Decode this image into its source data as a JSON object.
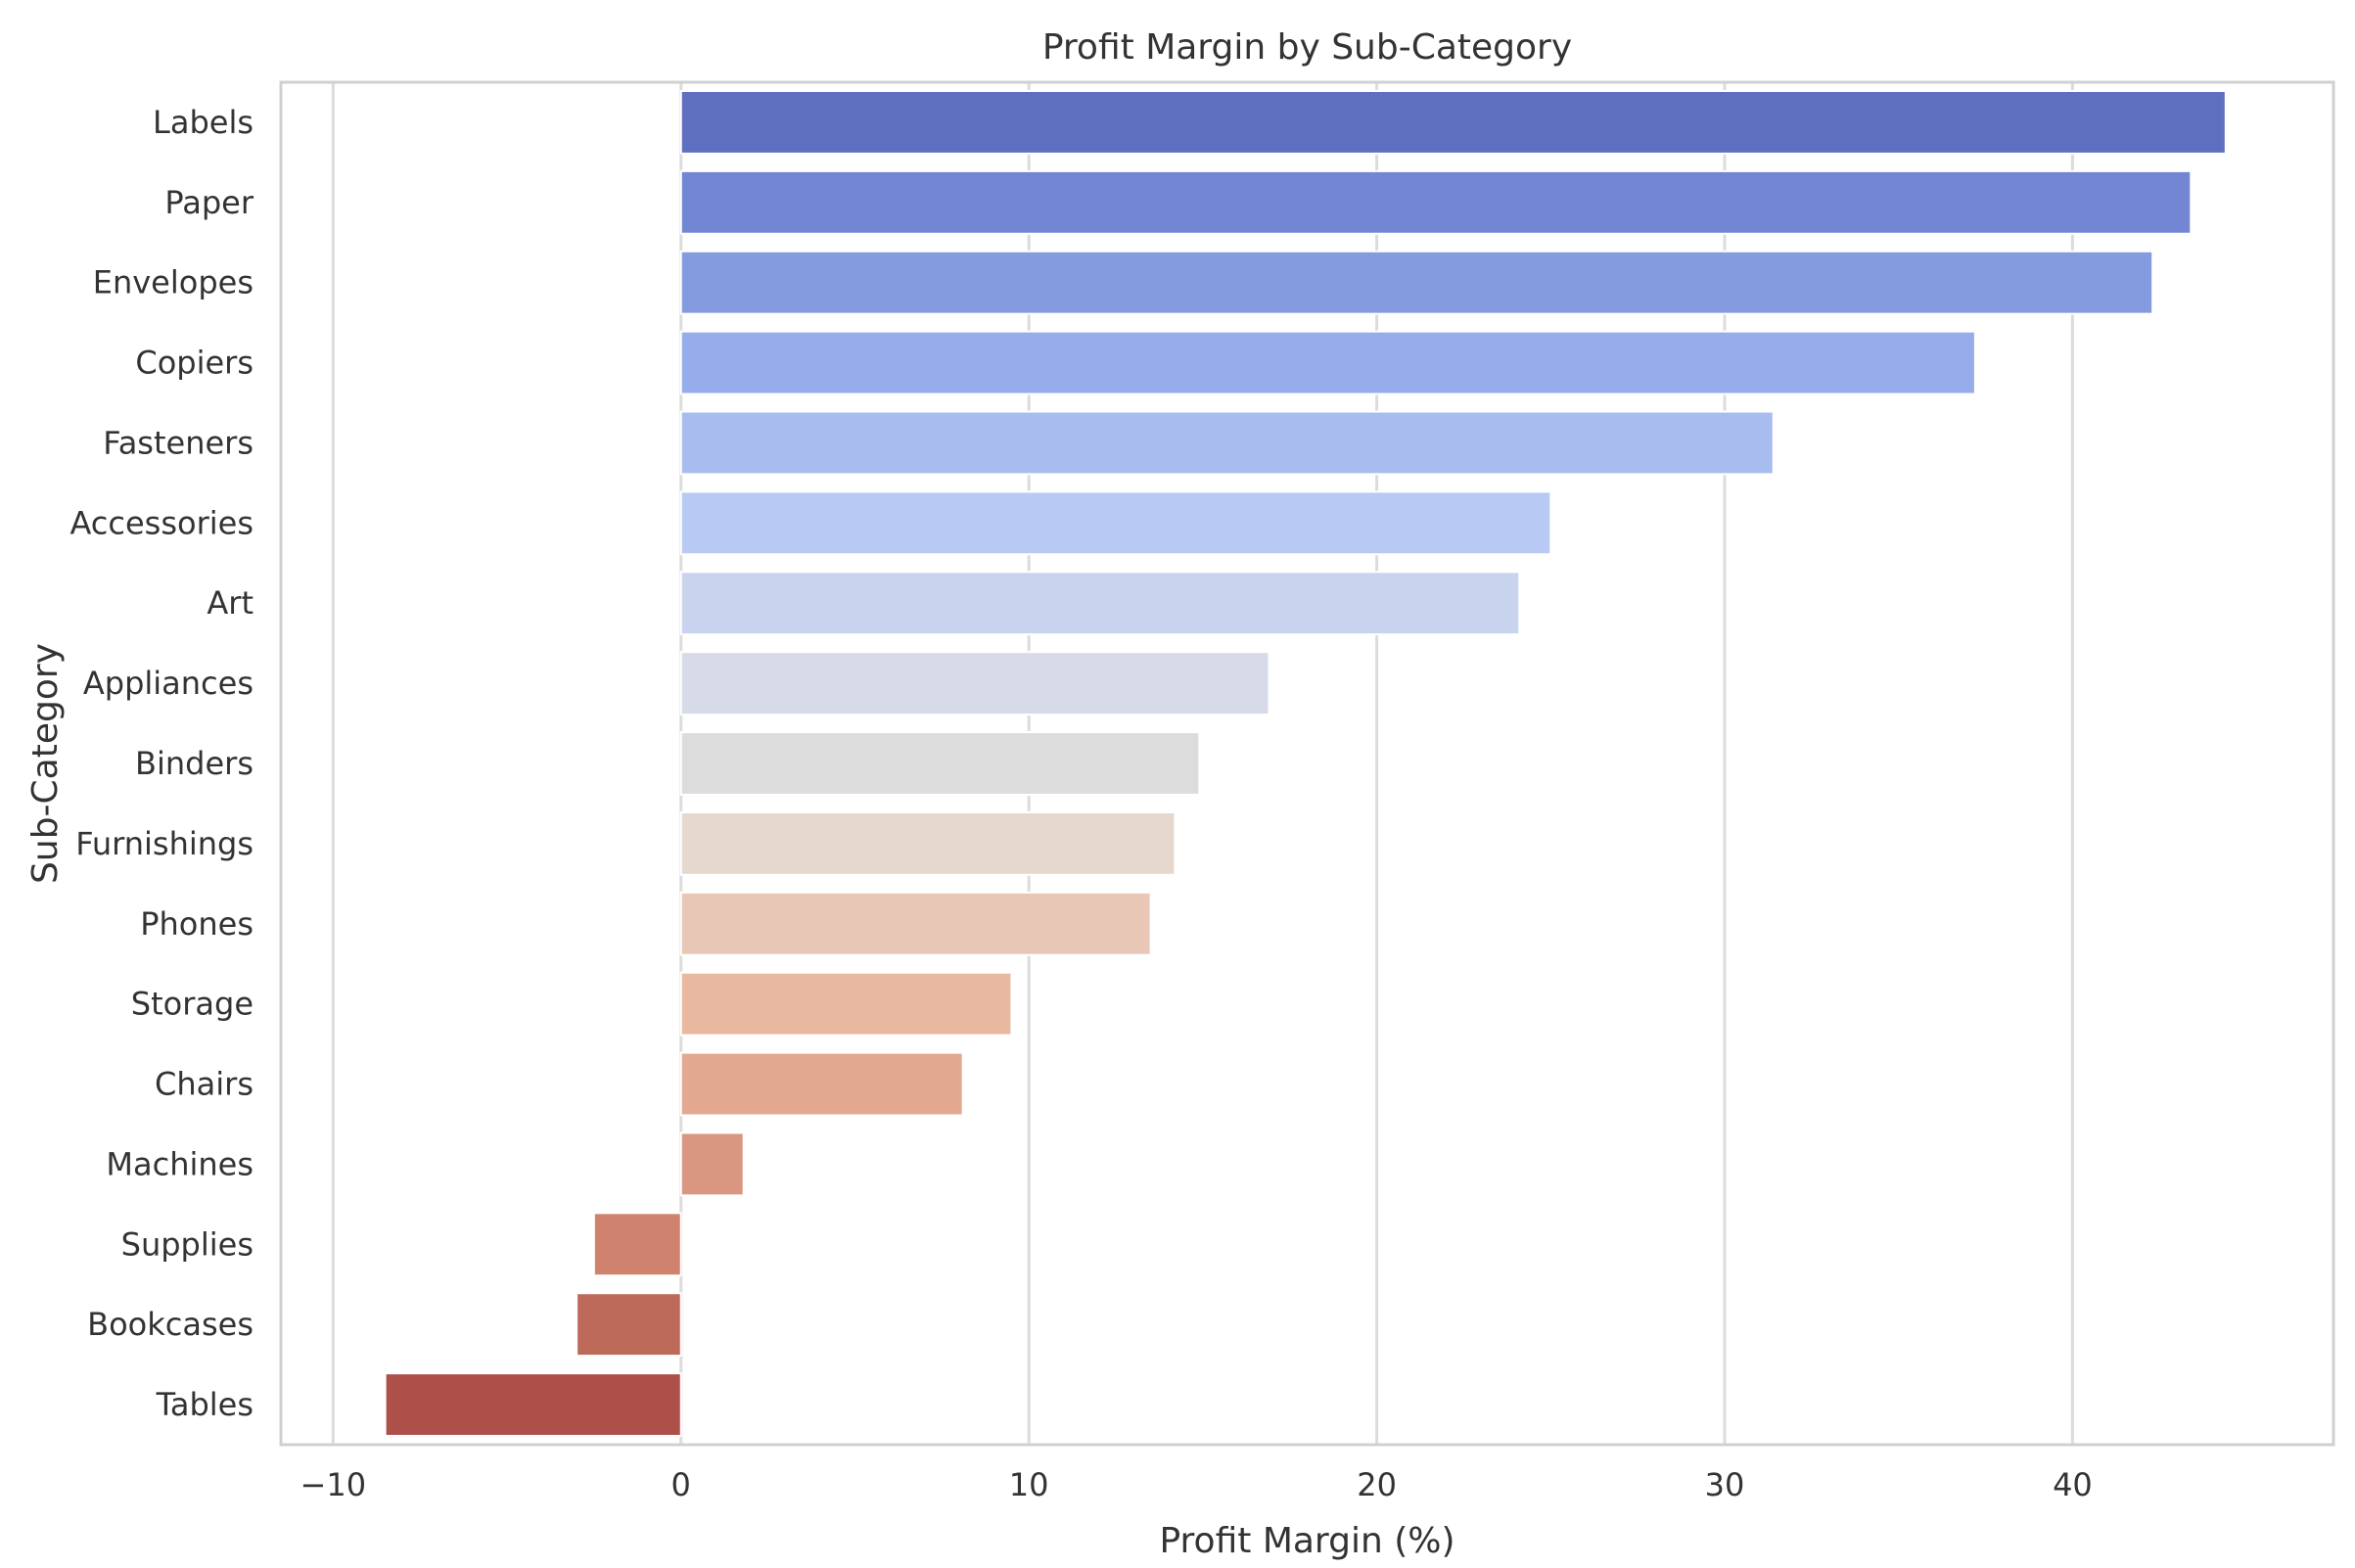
{
  "chart_data": {
    "type": "bar",
    "orientation": "horizontal",
    "title": "Profit Margin by Sub-Category",
    "xlabel": "Profit Margin (%)",
    "ylabel": "Sub-Category",
    "xlim": [
      -11.5,
      47.5
    ],
    "xticks": [
      -10,
      0,
      10,
      20,
      30,
      40
    ],
    "xtick_labels": [
      "−10",
      "0",
      "10",
      "20",
      "30",
      "40"
    ],
    "grid": "vertical gridlines",
    "legend": "none",
    "categories": [
      "Labels",
      "Paper",
      "Envelopes",
      "Copiers",
      "Fasteners",
      "Accessories",
      "Art",
      "Appliances",
      "Binders",
      "Furnishings",
      "Phones",
      "Storage",
      "Chairs",
      "Machines",
      "Supplies",
      "Bookcases",
      "Tables"
    ],
    "values": [
      44.4,
      43.4,
      42.3,
      37.2,
      31.4,
      25.0,
      24.1,
      16.9,
      14.9,
      14.2,
      13.5,
      9.5,
      8.1,
      1.8,
      -2.5,
      -3.0,
      -8.5
    ],
    "colors": [
      "#5f6fbf",
      "#7286d3",
      "#859be0",
      "#97aceb",
      "#a8bcf0",
      "#b8caf3",
      "#c8d4ee",
      "#d7dbe8",
      "#dcdcdc",
      "#e7d8ce",
      "#e8c7b7",
      "#e8b9a0",
      "#e2a890",
      "#d99680",
      "#cf826d",
      "#be6a5a",
      "#ad5049"
    ]
  }
}
